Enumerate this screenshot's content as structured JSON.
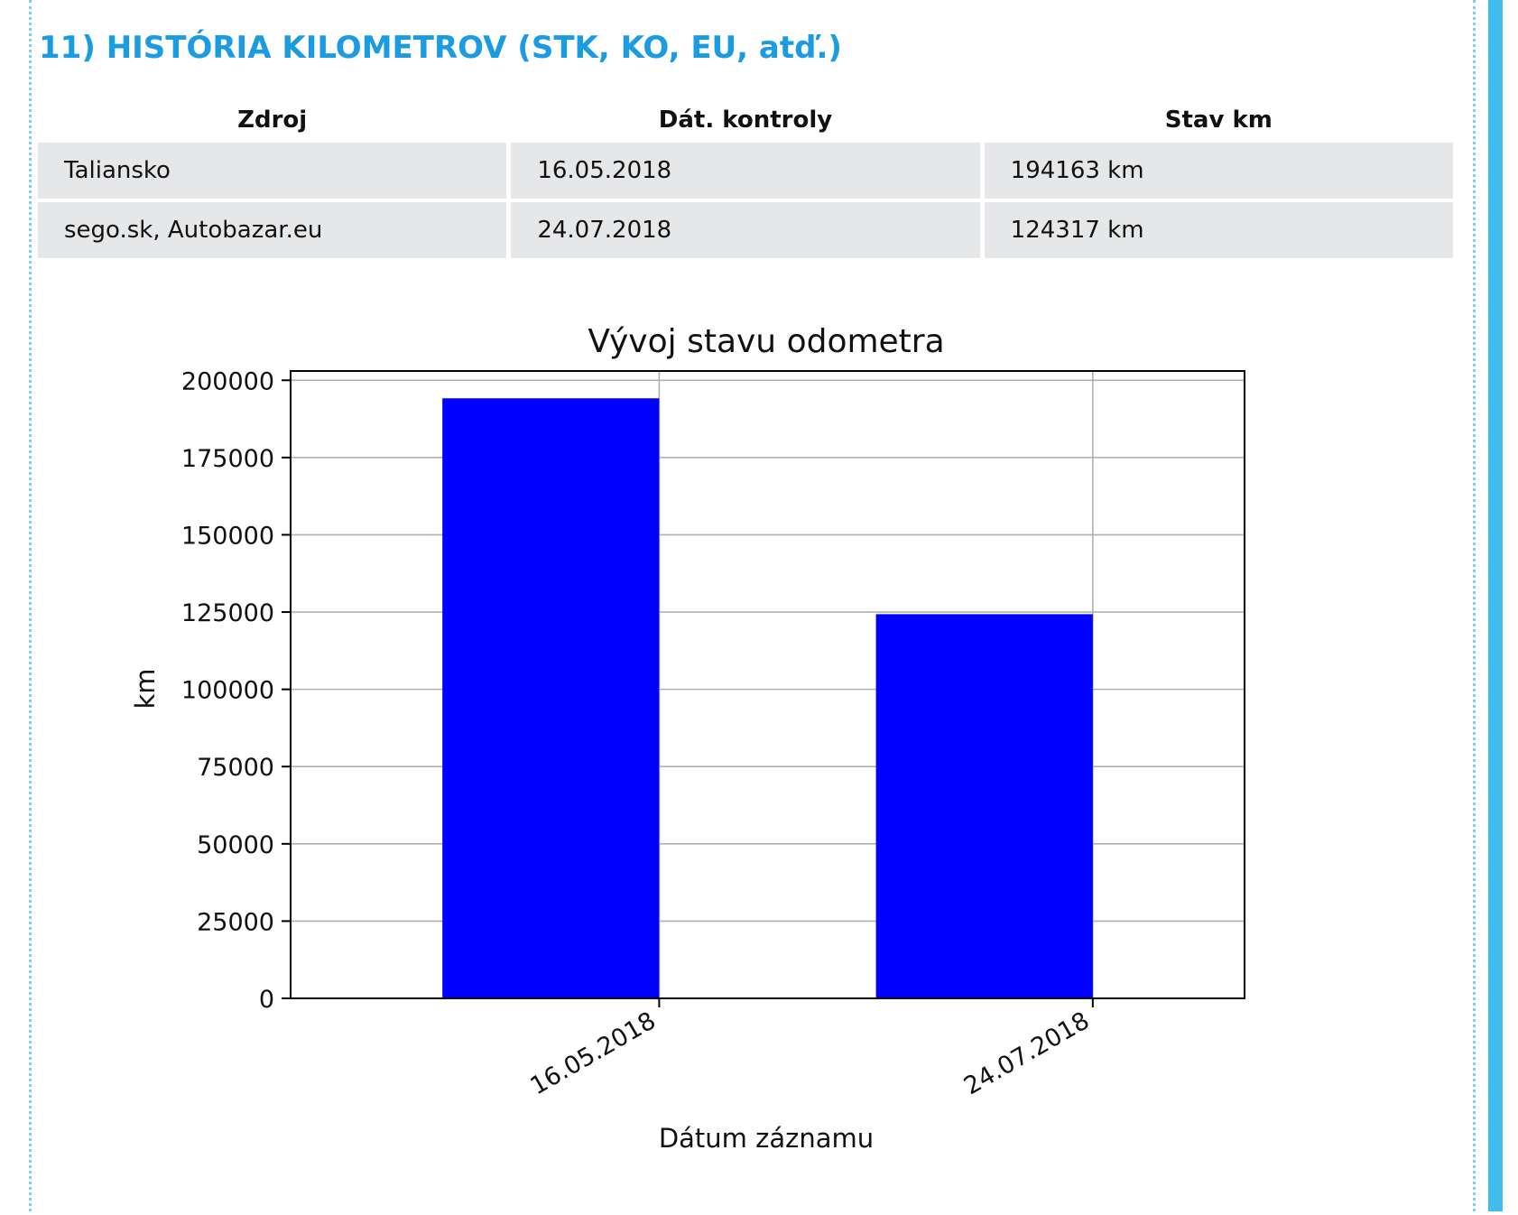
{
  "section": {
    "title": "11) HISTÓRIA KILOMETROV (STK, KO, EU, atď.)"
  },
  "table": {
    "headers": [
      "Zdroj",
      "Dát. kontroly",
      "Stav km"
    ],
    "rows": [
      [
        "Taliansko",
        "16.05.2018",
        "194163 km"
      ],
      [
        "sego.sk, Autobazar.eu",
        "24.07.2018",
        "124317 km"
      ]
    ]
  },
  "chart_data": {
    "type": "bar",
    "title": "Vývoj stavu odometra",
    "xlabel": "Dátum záznamu",
    "ylabel": "km",
    "categories": [
      "16.05.2018",
      "24.07.2018"
    ],
    "values": [
      194163,
      124317
    ],
    "ylim": [
      0,
      203000
    ],
    "yticks": [
      0,
      25000,
      50000,
      75000,
      100000,
      125000,
      150000,
      175000,
      200000
    ],
    "grid": true,
    "bar_color": "#0000ff"
  },
  "colors": {
    "accent": "#1a9be2",
    "border": "#3fbdec",
    "row_bg": "#e6e7e9"
  }
}
